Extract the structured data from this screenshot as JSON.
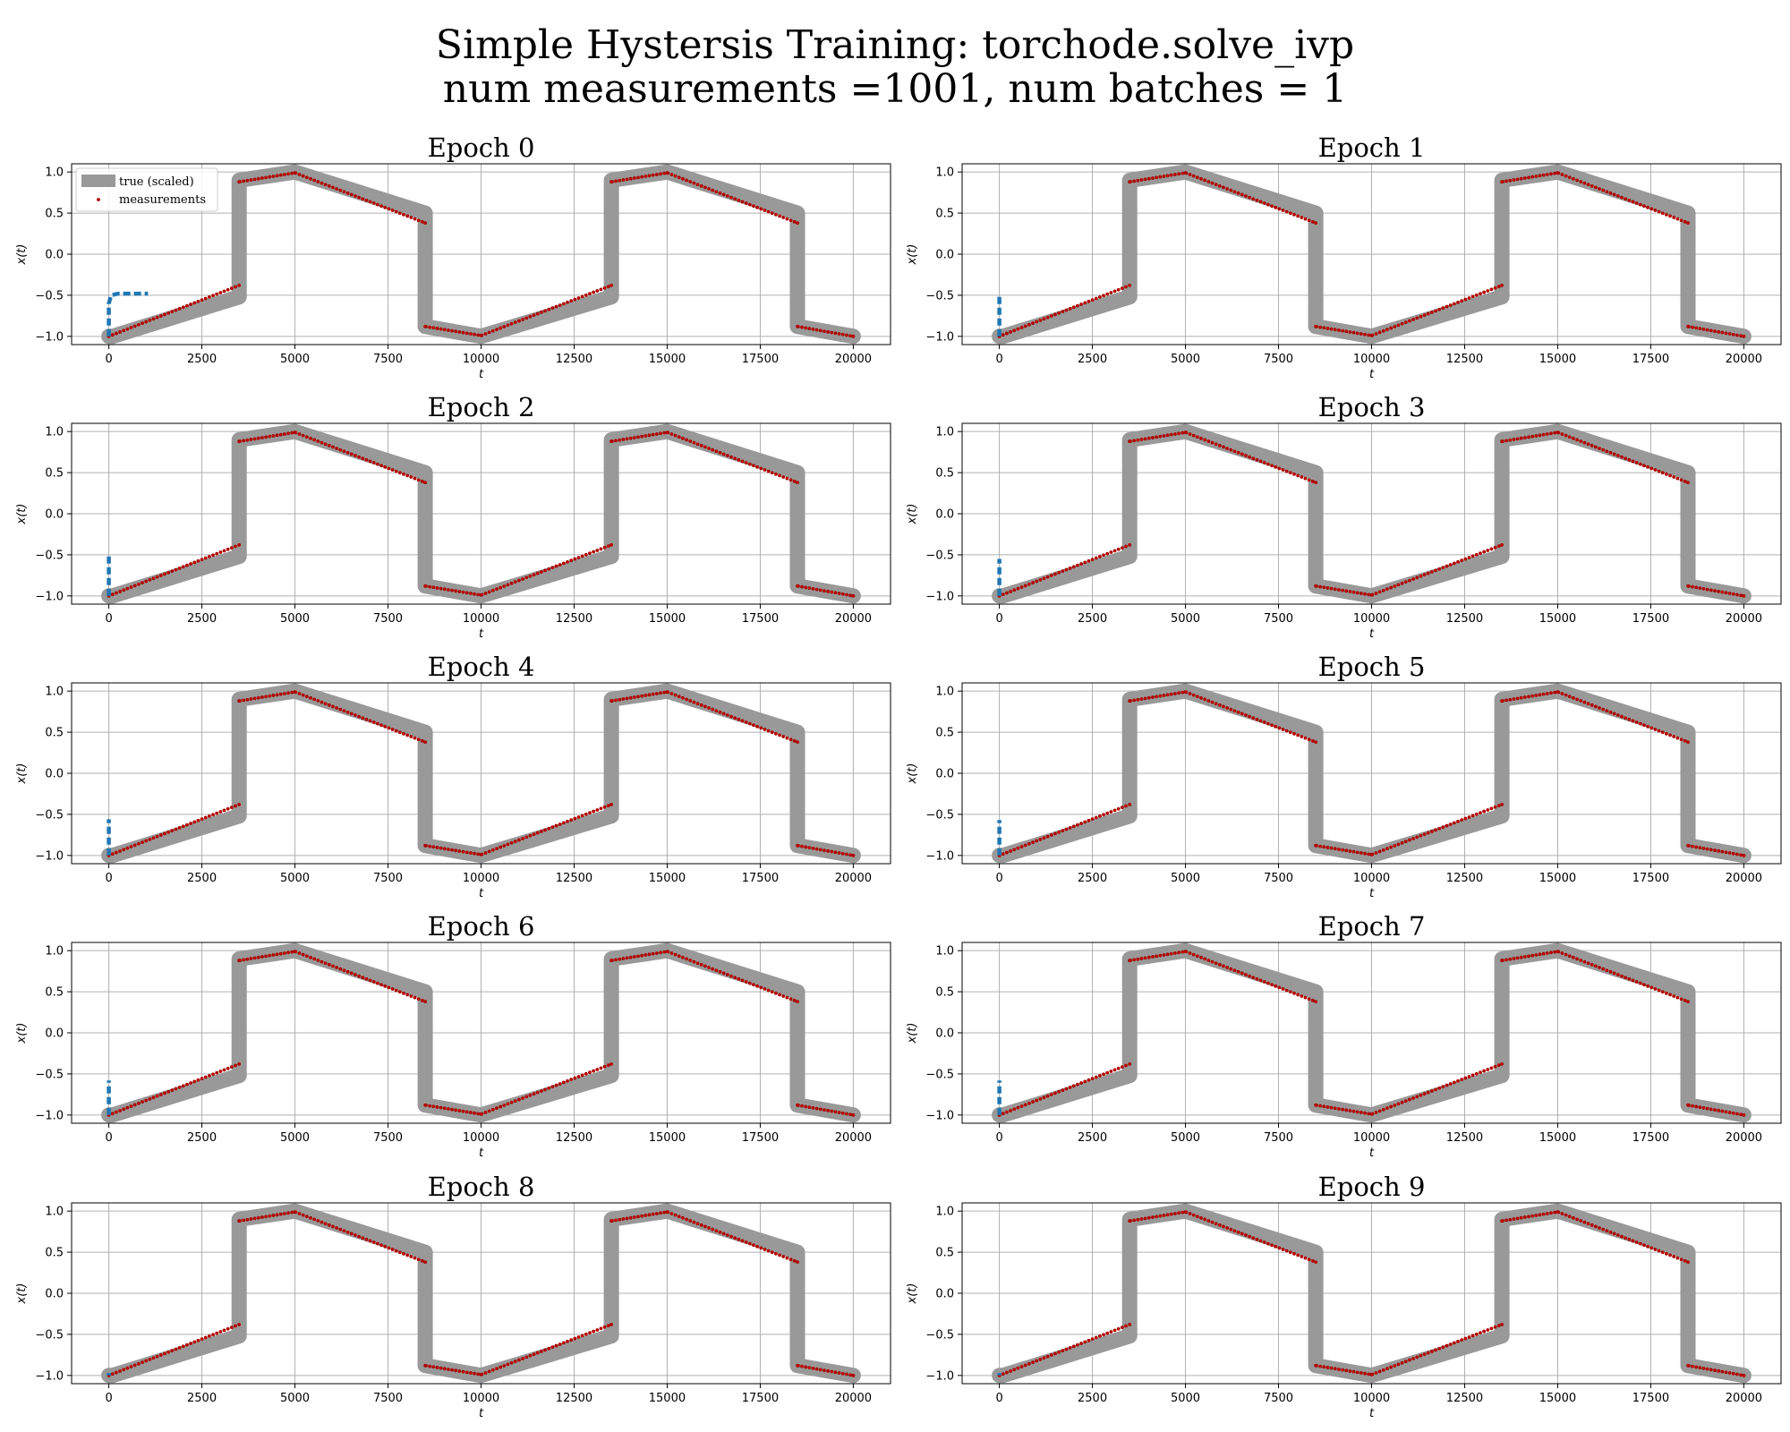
{
  "figure": {
    "title_line1": "Simple Hystersis Training: torchode.solve_ivp",
    "title_line2": "num measurements =1001, num batches = 1"
  },
  "colors": {
    "true": "#999999",
    "measurements": "#b00000",
    "prediction": "#1f77b4",
    "grid": "#b0b0b0"
  },
  "chart_data": [
    {
      "type": "line",
      "title": "Epoch 0",
      "xlabel": "t",
      "ylabel": "x(t)",
      "xlim": [
        -1000,
        21000
      ],
      "ylim": [
        -1.1,
        1.1
      ],
      "legend_position": "upper-left",
      "xticks": [
        "0",
        "2500",
        "5000",
        "7500",
        "10000",
        "12500",
        "15000",
        "17500",
        "20000"
      ],
      "yticks": [
        "1.0",
        "0.5",
        "0.0",
        "−0.5",
        "−1.0"
      ],
      "series": [
        {
          "name": "true (scaled)"
        },
        {
          "name": "measurements"
        }
      ],
      "prediction": {
        "x": [
          0,
          0,
          0,
          60,
          250,
          500,
          800,
          1050
        ],
        "y": [
          -1.0,
          -0.8,
          -0.6,
          -0.5,
          -0.48,
          -0.48,
          -0.48,
          -0.48
        ]
      }
    },
    {
      "type": "line",
      "title": "Epoch 1",
      "xlabel": "t",
      "ylabel": "x(t)",
      "xlim": [
        -1000,
        21000
      ],
      "ylim": [
        -1.1,
        1.1
      ],
      "xticks": [
        "0",
        "2500",
        "5000",
        "7500",
        "10000",
        "12500",
        "15000",
        "17500",
        "20000"
      ],
      "yticks": [
        "1.0",
        "0.5",
        "0.0",
        "−0.5",
        "−1.0"
      ],
      "prediction": {
        "x": [
          0,
          0,
          0,
          0
        ],
        "y": [
          -1.0,
          -0.8,
          -0.6,
          -0.48
        ]
      }
    },
    {
      "type": "line",
      "title": "Epoch 2",
      "xlabel": "t",
      "ylabel": "x(t)",
      "xlim": [
        -1000,
        21000
      ],
      "ylim": [
        -1.1,
        1.1
      ],
      "xticks": [
        "0",
        "2500",
        "5000",
        "7500",
        "10000",
        "12500",
        "15000",
        "17500",
        "20000"
      ],
      "yticks": [
        "1.0",
        "0.5",
        "0.0",
        "−0.5",
        "−1.0"
      ],
      "prediction": {
        "x": [
          0,
          0,
          0,
          0
        ],
        "y": [
          -1.0,
          -0.8,
          -0.65,
          -0.52
        ]
      }
    },
    {
      "type": "line",
      "title": "Epoch 3",
      "xlabel": "t",
      "ylabel": "x(t)",
      "xlim": [
        -1000,
        21000
      ],
      "ylim": [
        -1.1,
        1.1
      ],
      "xticks": [
        "0",
        "2500",
        "5000",
        "7500",
        "10000",
        "12500",
        "15000",
        "17500",
        "20000"
      ],
      "yticks": [
        "1.0",
        "0.5",
        "0.0",
        "−0.5",
        "−1.0"
      ],
      "prediction": {
        "x": [
          0,
          0,
          0,
          0
        ],
        "y": [
          -1.0,
          -0.8,
          -0.65,
          -0.55
        ]
      }
    },
    {
      "type": "line",
      "title": "Epoch 4",
      "xlabel": "t",
      "ylabel": "x(t)",
      "xlim": [
        -1000,
        21000
      ],
      "ylim": [
        -1.1,
        1.1
      ],
      "xticks": [
        "0",
        "2500",
        "5000",
        "7500",
        "10000",
        "12500",
        "15000",
        "17500",
        "20000"
      ],
      "yticks": [
        "1.0",
        "0.5",
        "0.0",
        "−0.5",
        "−1.0"
      ],
      "prediction": {
        "x": [
          0,
          0,
          0,
          0
        ],
        "y": [
          -1.0,
          -0.85,
          -0.7,
          -0.56
        ]
      }
    },
    {
      "type": "line",
      "title": "Epoch 5",
      "xlabel": "t",
      "ylabel": "x(t)",
      "xlim": [
        -1000,
        21000
      ],
      "ylim": [
        -1.1,
        1.1
      ],
      "xticks": [
        "0",
        "2500",
        "5000",
        "7500",
        "10000",
        "12500",
        "15000",
        "17500",
        "20000"
      ],
      "yticks": [
        "1.0",
        "0.5",
        "0.0",
        "−0.5",
        "−1.0"
      ],
      "prediction": {
        "x": [
          0,
          0,
          0,
          0
        ],
        "y": [
          -1.0,
          -0.85,
          -0.7,
          -0.57
        ]
      }
    },
    {
      "type": "line",
      "title": "Epoch 6",
      "xlabel": "t",
      "ylabel": "x(t)",
      "xlim": [
        -1000,
        21000
      ],
      "ylim": [
        -1.1,
        1.1
      ],
      "xticks": [
        "0",
        "2500",
        "5000",
        "7500",
        "10000",
        "12500",
        "15000",
        "17500",
        "20000"
      ],
      "yticks": [
        "1.0",
        "0.5",
        "0.0",
        "−0.5",
        "−1.0"
      ],
      "prediction": {
        "x": [
          0,
          0,
          0,
          0
        ],
        "y": [
          -1.0,
          -0.85,
          -0.72,
          -0.58
        ]
      }
    },
    {
      "type": "line",
      "title": "Epoch 7",
      "xlabel": "t",
      "ylabel": "x(t)",
      "xlim": [
        -1000,
        21000
      ],
      "ylim": [
        -1.1,
        1.1
      ],
      "xticks": [
        "0",
        "2500",
        "5000",
        "7500",
        "10000",
        "12500",
        "15000",
        "17500",
        "20000"
      ],
      "yticks": [
        "1.0",
        "0.5",
        "0.0",
        "−0.5",
        "−1.0"
      ],
      "prediction": {
        "x": [
          0,
          0,
          0,
          0
        ],
        "y": [
          -1.0,
          -0.85,
          -0.72,
          -0.58
        ]
      }
    },
    {
      "type": "line",
      "title": "Epoch 8",
      "xlabel": "t",
      "ylabel": "x(t)",
      "xlim": [
        -1000,
        21000
      ],
      "ylim": [
        -1.1,
        1.1
      ],
      "xticks": [
        "0",
        "2500",
        "5000",
        "7500",
        "10000",
        "12500",
        "15000",
        "17500",
        "20000"
      ],
      "yticks": [
        "1.0",
        "0.5",
        "0.0",
        "−0.5",
        "−1.0"
      ],
      "prediction": {
        "x": [
          0,
          0
        ],
        "y": [
          -1.0,
          -0.97
        ]
      }
    },
    {
      "type": "line",
      "title": "Epoch 9",
      "xlabel": "t",
      "ylabel": "x(t)",
      "xlim": [
        -1000,
        21000
      ],
      "ylim": [
        -1.1,
        1.1
      ],
      "xticks": [
        "0",
        "2500",
        "5000",
        "7500",
        "10000",
        "12500",
        "15000",
        "17500",
        "20000"
      ],
      "yticks": [
        "1.0",
        "0.5",
        "0.0",
        "−0.5",
        "−1.0"
      ],
      "prediction": {
        "x": [
          0,
          0
        ],
        "y": [
          -1.0,
          -0.97
        ]
      }
    }
  ],
  "shared_series": {
    "true_x": [
      0,
      100,
      3500,
      3500,
      5000,
      8500,
      8500,
      10000,
      13500,
      13500,
      15000,
      18500,
      18500,
      20000
    ],
    "true_y": [
      -1.0,
      -1.0,
      -0.52,
      0.9,
      1.0,
      0.5,
      -0.88,
      -1.0,
      -0.52,
      0.9,
      1.0,
      0.5,
      -0.88,
      -1.0
    ],
    "meas_x": [
      0,
      3500,
      3500,
      5000,
      8500,
      8500,
      10000,
      13500,
      13500,
      15000,
      18500,
      18500,
      20000
    ],
    "meas_y": [
      -1.0,
      -0.38,
      0.88,
      0.99,
      0.38,
      -0.88,
      -0.99,
      -0.38,
      0.88,
      0.99,
      0.38,
      -0.88,
      -1.0
    ]
  }
}
